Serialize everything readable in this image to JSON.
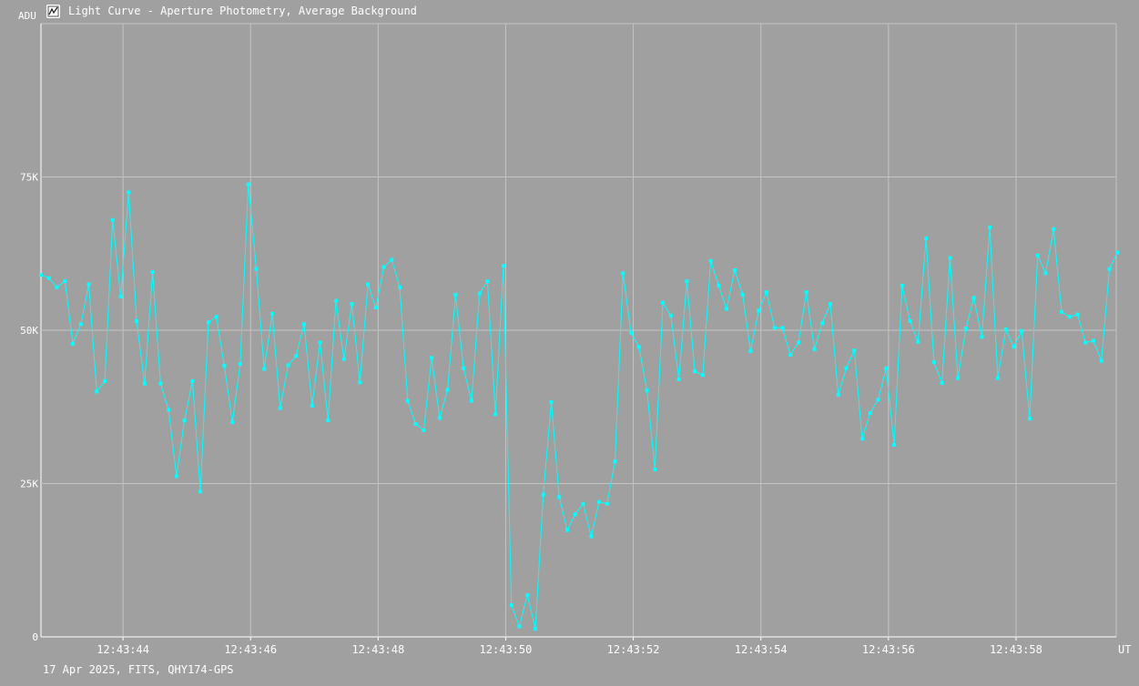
{
  "header": {
    "title": "Light Curve - Aperture Photometry, Average Background",
    "icon": "chart-window-icon"
  },
  "footer": {
    "text": "17 Apr 2025, FITS, QHY174-GPS"
  },
  "colors": {
    "background": "#a0a0a0",
    "grid": "#c4c4c4",
    "series": "#00ffff",
    "text": "#ffffff"
  },
  "chart_data": {
    "type": "line",
    "title": "Light Curve - Aperture Photometry, Average Background",
    "ylabel": "ADU",
    "xlabel": "UT",
    "ylim": [
      0,
      100000
    ],
    "yticks": [
      {
        "value": 0,
        "label": "0"
      },
      {
        "value": 25000,
        "label": "25K"
      },
      {
        "value": 50000,
        "label": "50K"
      },
      {
        "value": 75000,
        "label": "75K"
      }
    ],
    "xlim": [
      42.714,
      59.571
    ],
    "xticks": [
      {
        "value": 44,
        "label": "12:43:44"
      },
      {
        "value": 46,
        "label": "12:43:46"
      },
      {
        "value": 48,
        "label": "12:43:48"
      },
      {
        "value": 50,
        "label": "12:43:50"
      },
      {
        "value": 52,
        "label": "12:43:52"
      },
      {
        "value": 54,
        "label": "12:43:54"
      },
      {
        "value": 56,
        "label": "12:43:56"
      },
      {
        "value": 58,
        "label": "12:43:58"
      }
    ],
    "grid": true,
    "series": [
      {
        "x_start": 42.714,
        "x_step": 0.125,
        "values": [
          59000,
          58500,
          57000,
          58000,
          47800,
          51000,
          57500,
          40000,
          41700,
          68000,
          55500,
          72500,
          51500,
          41300,
          59500,
          41300,
          37000,
          26200,
          35300,
          41700,
          23700,
          51300,
          52200,
          44200,
          35000,
          44500,
          73800,
          60000,
          43700,
          52700,
          37300,
          44300,
          45800,
          51000,
          37700,
          48000,
          35300,
          54800,
          45300,
          54300,
          41500,
          57500,
          53700,
          60300,
          61500,
          57000,
          38500,
          34700,
          33700,
          45500,
          35700,
          40300,
          55800,
          43800,
          38500,
          56000,
          58000,
          36300,
          60500,
          5200,
          1700,
          6800,
          1300,
          23200,
          38300,
          22800,
          17400,
          20000,
          21700,
          16400,
          22000,
          21700,
          28600,
          59300,
          49600,
          47300,
          40200,
          27300,
          54500,
          52400,
          42000,
          58000,
          43300,
          42700,
          61300,
          57300,
          53500,
          59800,
          55800,
          46600,
          53200,
          56200,
          50400,
          50400,
          46000,
          48000,
          56200,
          46900,
          51200,
          54300,
          39500,
          43800,
          46700,
          32300,
          36500,
          38700,
          43800,
          31300,
          57300,
          51500,
          48100,
          65000,
          44800,
          41400,
          61800,
          42200,
          50300,
          55300,
          48900,
          66800,
          42200,
          50200,
          47300,
          49900,
          35600,
          62200,
          59300,
          66500,
          53000,
          52200,
          52600,
          48000,
          48300,
          45000,
          60000,
          62700
        ]
      }
    ]
  }
}
